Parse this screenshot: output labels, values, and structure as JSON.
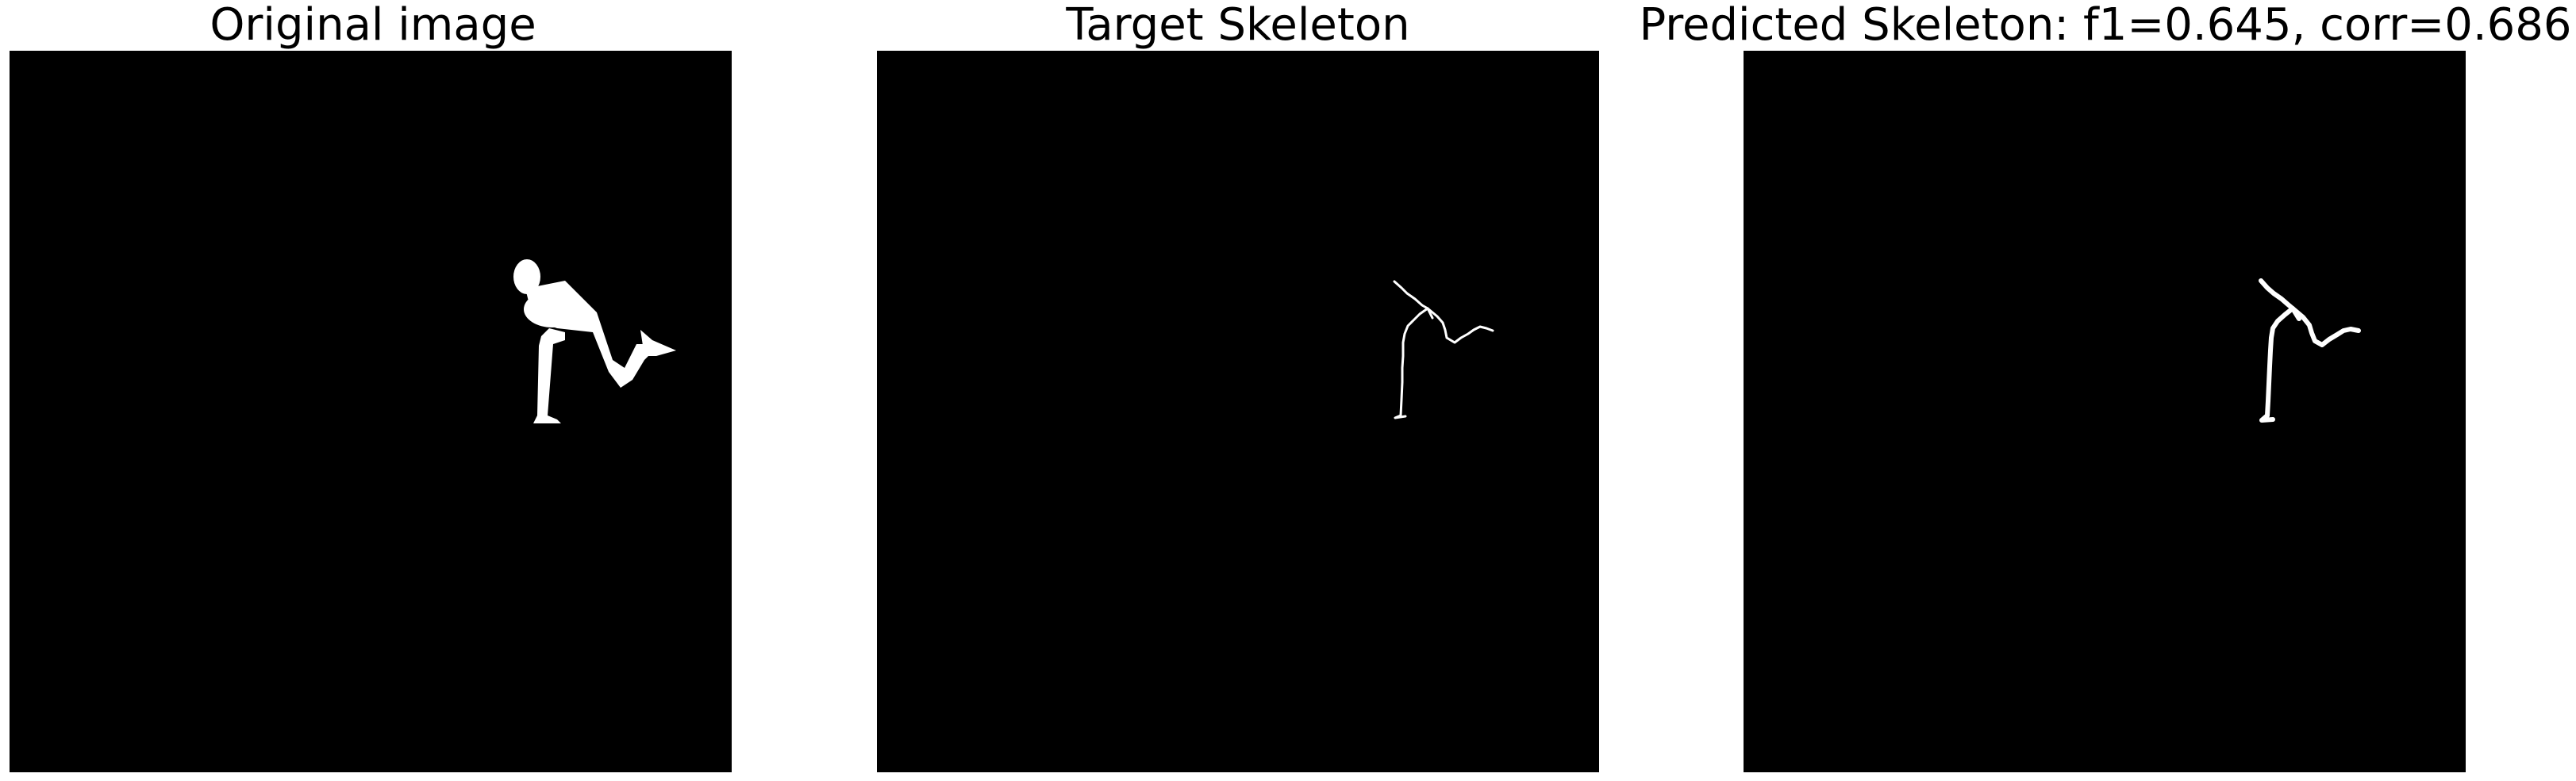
{
  "panels": [
    {
      "title": "Original image"
    },
    {
      "title": "Target Skeleton"
    },
    {
      "title": "Predicted Skeleton: f1=0.645, corr=0.686"
    }
  ],
  "colors": {
    "background": "#000000",
    "foreground": "#ffffff",
    "page": "#ffffff"
  }
}
